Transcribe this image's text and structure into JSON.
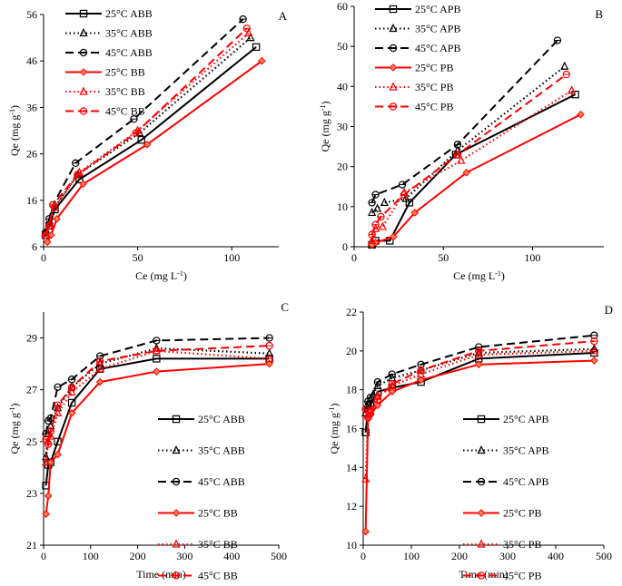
{
  "chart_data": [
    {
      "id": "A",
      "type": "line",
      "panel_label": "A",
      "xlabel": "Ce (mg L-1)",
      "xlabel_main": "Ce (mg L",
      "xlabel_sup": "-1",
      "xlabel_tail": ")",
      "ylabel": "Qe (mg g-1)",
      "ylabel_main": "Qe (mg g",
      "ylabel_sup": "-1",
      "ylabel_tail": ")",
      "xlim": [
        0,
        125
      ],
      "ylim": [
        6,
        56
      ],
      "xticks": [
        0,
        50,
        100
      ],
      "yticks": [
        6,
        16,
        26,
        36,
        46,
        56
      ],
      "legend_position": "top-left",
      "series": [
        {
          "name": "25°C ABB",
          "color": "#000000",
          "dash": "solid",
          "marker": "square",
          "x": [
            1,
            3,
            6,
            19,
            52,
            113
          ],
          "y": [
            8.5,
            10.5,
            14,
            20.5,
            29,
            49
          ]
        },
        {
          "name": "35°C ABB",
          "color": "#000000",
          "dash": "dotted",
          "marker": "triangle",
          "x": [
            1,
            3,
            6,
            18,
            51,
            110
          ],
          "y": [
            9,
            11,
            14.5,
            21.5,
            30.5,
            51
          ]
        },
        {
          "name": "45°C ABB",
          "color": "#000000",
          "dash": "dashed",
          "marker": "circle",
          "x": [
            1,
            3,
            5,
            17,
            48,
            106
          ],
          "y": [
            9,
            12,
            15,
            24,
            33.5,
            55
          ]
        },
        {
          "name": "25°C BB",
          "color": "#ff0000",
          "dash": "solid",
          "marker": "diamond",
          "x": [
            2,
            4,
            7,
            21,
            55,
            116
          ],
          "y": [
            7,
            8.5,
            12,
            19.5,
            28,
            46
          ]
        },
        {
          "name": "35°C BB",
          "color": "#ff0000",
          "dash": "dotted",
          "marker": "triangle",
          "x": [
            1,
            3,
            6,
            19,
            50,
            109
          ],
          "y": [
            8.5,
            10.5,
            14.5,
            22,
            31,
            52
          ]
        },
        {
          "name": "45°C BB",
          "color": "#ff0000",
          "dash": "dashed",
          "marker": "circle",
          "x": [
            1,
            3,
            5,
            18,
            49,
            108
          ],
          "y": [
            8.5,
            10.5,
            15,
            21.5,
            30.5,
            53
          ]
        }
      ]
    },
    {
      "id": "B",
      "type": "line",
      "panel_label": "B",
      "xlabel": "Ce (mg L-1)",
      "xlabel_main": "Ce (mg L",
      "xlabel_sup": "-1",
      "xlabel_tail": ")",
      "ylabel": "Qe (mg g-1)",
      "ylabel_main": "Qe (mg g",
      "ylabel_sup": "-1",
      "ylabel_tail": ")",
      "xlim": [
        0,
        140
      ],
      "ylim": [
        0,
        60
      ],
      "xticks": [
        0,
        50,
        100
      ],
      "yticks": [
        0,
        10,
        20,
        30,
        40,
        50,
        60
      ],
      "legend_position": "top-left",
      "series": [
        {
          "name": "25°C APB",
          "color": "#000000",
          "dash": "solid",
          "marker": "square",
          "x": [
            10,
            12,
            20,
            31,
            57,
            124
          ],
          "y": [
            0.5,
            1.5,
            1.5,
            11,
            23,
            38
          ]
        },
        {
          "name": "35°C  APB",
          "color": "#000000",
          "dash": "dotted",
          "marker": "triangle",
          "x": [
            10,
            13,
            17,
            29,
            58,
            118
          ],
          "y": [
            8.5,
            9.5,
            11,
            12,
            24,
            45
          ]
        },
        {
          "name": "45°C  APB",
          "color": "#000000",
          "dash": "dashed",
          "marker": "circle",
          "x": [
            10,
            12,
            27,
            58,
            114
          ],
          "y": [
            11,
            13,
            15.5,
            25.5,
            51.5
          ]
        },
        {
          "name": "25°C PB",
          "color": "#ff0000",
          "dash": "solid",
          "marker": "diamond",
          "x": [
            10,
            12,
            22,
            34,
            63,
            127
          ],
          "y": [
            0.5,
            1,
            2.5,
            8.5,
            18.5,
            33
          ]
        },
        {
          "name": "35°C PB",
          "color": "#ff0000",
          "dash": "dotted",
          "marker": "triangle",
          "x": [
            10,
            12,
            16,
            28,
            60,
            122
          ],
          "y": [
            1.5,
            4.5,
            5,
            13.5,
            21.5,
            39
          ]
        },
        {
          "name": "45°C PB",
          "color": "#ff0000",
          "dash": "dashed",
          "marker": "circle",
          "x": [
            10,
            12,
            15,
            28,
            58,
            119
          ],
          "y": [
            3,
            5.5,
            7.5,
            13,
            23,
            43
          ]
        }
      ]
    },
    {
      "id": "C",
      "type": "line",
      "panel_label": "C",
      "xlabel": "Time (min)",
      "ylabel": "Qe (mg g-1)",
      "ylabel_main": "Qe (mg g",
      "ylabel_sup": "-1",
      "ylabel_tail": ")",
      "xlim": [
        0,
        500
      ],
      "ylim": [
        21,
        30
      ],
      "xticks": [
        0,
        100,
        200,
        300,
        400,
        500
      ],
      "yticks": [
        21,
        23,
        25,
        27,
        29
      ],
      "legend_position": "center-right",
      "series": [
        {
          "name": "25°C ABB",
          "color": "#000000",
          "dash": "solid",
          "marker": "square",
          "x": [
            5,
            10,
            15,
            30,
            60,
            120,
            240,
            480
          ],
          "y": [
            23.3,
            24.1,
            24.2,
            25,
            26.5,
            27.8,
            28.2,
            28.2
          ]
        },
        {
          "name": "35°C ABB",
          "color": "#000000",
          "dash": "dotted",
          "marker": "triangle",
          "x": [
            5,
            10,
            15,
            30,
            60,
            120,
            240,
            480
          ],
          "y": [
            24.4,
            25.3,
            25.6,
            26.3,
            27.1,
            28,
            28.6,
            28.4
          ]
        },
        {
          "name": "45°C ABB",
          "color": "#000000",
          "dash": "dashed",
          "marker": "circle",
          "x": [
            5,
            10,
            15,
            30,
            60,
            120,
            240,
            480
          ],
          "y": [
            25.3,
            25.8,
            25.9,
            27.1,
            27.4,
            28.3,
            28.9,
            29
          ]
        },
        {
          "name": "25°C BB",
          "color": "#ff0000",
          "dash": "solid",
          "marker": "diamond",
          "x": [
            5,
            10,
            15,
            30,
            60,
            120,
            240,
            480
          ],
          "y": [
            22.2,
            22.9,
            24.2,
            24.5,
            26.1,
            27.3,
            27.7,
            28
          ]
        },
        {
          "name": "35°C BB",
          "color": "#ff0000",
          "dash": "dotted",
          "marker": "triangle",
          "x": [
            5,
            10,
            15,
            30,
            60,
            120,
            240,
            480
          ],
          "y": [
            24.2,
            25,
            25.2,
            26.1,
            26.9,
            27.8,
            28.5,
            28.2
          ]
        },
        {
          "name": "45°C BB",
          "color": "#ff0000",
          "dash": "dashed",
          "marker": "circle",
          "x": [
            5,
            10,
            15,
            30,
            60,
            120,
            240,
            480
          ],
          "y": [
            25.1,
            24.9,
            25.4,
            26.4,
            27.1,
            28.1,
            28.5,
            28.7
          ]
        }
      ]
    },
    {
      "id": "D",
      "type": "line",
      "panel_label": "D",
      "xlabel": "Time (min)",
      "ylabel": "Qe (mg g-1)",
      "ylabel_main": "Qe (mg g",
      "ylabel_sup": "-1",
      "ylabel_tail": ")",
      "xlim": [
        0,
        500
      ],
      "ylim": [
        10,
        22
      ],
      "xticks": [
        0,
        100,
        200,
        300,
        400,
        500
      ],
      "yticks": [
        10,
        12,
        14,
        16,
        18,
        20,
        22
      ],
      "legend_position": "center-right",
      "series": [
        {
          "name": "25°C APB",
          "color": "#000000",
          "dash": "solid",
          "marker": "square",
          "x": [
            5,
            10,
            15,
            30,
            60,
            120,
            240,
            480
          ],
          "y": [
            15.8,
            17,
            17.2,
            17.9,
            18.1,
            18.4,
            19.6,
            19.9
          ]
        },
        {
          "name": "35°C  APB",
          "color": "#000000",
          "dash": "dotted",
          "marker": "triangle",
          "x": [
            5,
            10,
            15,
            30,
            60,
            120,
            240,
            480
          ],
          "y": [
            16.8,
            17.3,
            17.5,
            18.2,
            18.6,
            19,
            19.9,
            20.1
          ]
        },
        {
          "name": "45°C  APB",
          "color": "#000000",
          "dash": "dashed",
          "marker": "circle",
          "x": [
            5,
            10,
            15,
            30,
            60,
            120,
            240,
            480
          ],
          "y": [
            17,
            17.4,
            17.6,
            18.4,
            18.8,
            19.3,
            20.2,
            20.8
          ]
        },
        {
          "name": "25°C PB",
          "color": "#ff0000",
          "dash": "solid",
          "marker": "diamond",
          "x": [
            5,
            10,
            15,
            30,
            60,
            120,
            240,
            480
          ],
          "y": [
            10.7,
            16.5,
            16.7,
            17.2,
            17.9,
            18.5,
            19.3,
            19.5
          ]
        },
        {
          "name": "35°C PB",
          "color": "#ff0000",
          "dash": "dotted",
          "marker": "triangle",
          "x": [
            5,
            10,
            15,
            30,
            60,
            120,
            240,
            480
          ],
          "y": [
            13.4,
            16.7,
            16.9,
            17.7,
            18.2,
            18.8,
            19.8,
            20
          ]
        },
        {
          "name": "45°C PB",
          "color": "#ff0000",
          "dash": "dashed",
          "marker": "circle",
          "x": [
            5,
            10,
            15,
            30,
            60,
            120,
            240,
            480
          ],
          "y": [
            17,
            16.6,
            16.8,
            17.5,
            18.3,
            19,
            20,
            20.5
          ]
        }
      ]
    }
  ]
}
